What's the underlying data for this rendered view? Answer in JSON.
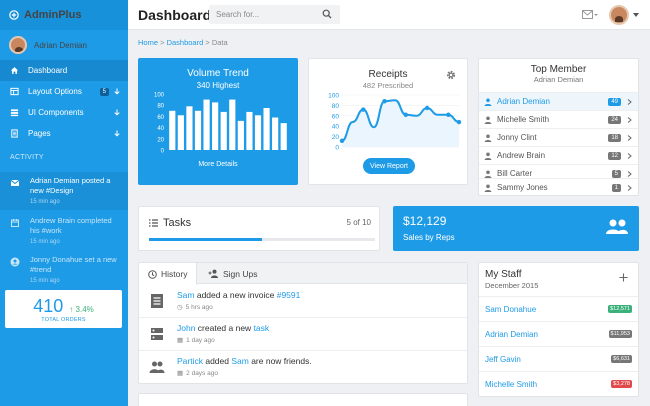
{
  "app": {
    "brand": "AdminPlus",
    "page_title": "Dashboard"
  },
  "colors": {
    "primary": "#1e9be6",
    "sidebar": "#1e9be6",
    "success": "#3bb07b",
    "danger": "#e04a4a",
    "muted": "#777777"
  },
  "search": {
    "placeholder": "Search for..."
  },
  "user": {
    "name": "Adrian Demian"
  },
  "sidebar": {
    "items": [
      {
        "label": "Dashboard",
        "icon": "home-icon"
      },
      {
        "label": "Layout Options",
        "icon": "layout-icon",
        "badge": "5"
      },
      {
        "label": "UI Components",
        "icon": "components-icon"
      },
      {
        "label": "Pages",
        "icon": "pages-icon"
      }
    ],
    "activity_heading": "ACTIVITY",
    "activity": [
      {
        "text": "Adrian Demian posted a new #Design",
        "time": "15 min ago"
      },
      {
        "text": "Andrew Brain completed his #work",
        "time": "15 min ago"
      },
      {
        "text": "Jonny Donahue set a new #trend",
        "time": "15 min ago"
      }
    ],
    "orders": {
      "value": "410",
      "change": "3.4%",
      "label": "TOTAL ORDERS"
    }
  },
  "breadcrumb": {
    "home": "Home",
    "dashboard": "Dashboard",
    "current": "Data"
  },
  "volume": {
    "title": "Volume Trend",
    "subtitle": "340 Highest",
    "footer": "More Details"
  },
  "receipts": {
    "title": "Receipts",
    "subtitle": "482 Prescribed",
    "button": "View Report"
  },
  "chart_data": [
    {
      "type": "bar",
      "ylim": [
        0,
        100
      ],
      "yticks": [
        "100",
        "80",
        "60",
        "40",
        "20",
        "0"
      ],
      "values": [
        70,
        62,
        78,
        70,
        90,
        85,
        68,
        90,
        52,
        68,
        62,
        75,
        58,
        48
      ]
    },
    {
      "type": "line",
      "ylim": [
        0,
        100
      ],
      "yticks": [
        "100",
        "80",
        "60",
        "40",
        "20",
        "0"
      ],
      "values": [
        12,
        48,
        72,
        38,
        88,
        90,
        62,
        60,
        75,
        62,
        62,
        48
      ]
    }
  ],
  "top_member": {
    "title": "Top Member",
    "subtitle": "Adrian Demian",
    "rows": [
      {
        "name": "Adrian Demian",
        "count": "49"
      },
      {
        "name": "Michelle Smith",
        "count": "24"
      },
      {
        "name": "Jonny Clint",
        "count": "18"
      },
      {
        "name": "Andrew Brain",
        "count": "12"
      },
      {
        "name": "Bill Carter",
        "count": "5"
      },
      {
        "name": "Sammy Jones",
        "count": "1"
      }
    ]
  },
  "tasks": {
    "title": "Tasks",
    "count": "5 of 10",
    "progress": 0.5
  },
  "sales": {
    "value": "$12,129",
    "label": "Sales by Reps"
  },
  "history": {
    "tabs": [
      "History",
      "Sign Ups"
    ],
    "rows": [
      {
        "pre": "",
        "who": "Sam",
        "mid": " added a new invoice ",
        "link": "#9591",
        "post": "",
        "time": "5 hrs ago"
      },
      {
        "pre": "",
        "who": "John",
        "mid": " created a new ",
        "link": "task",
        "post": "",
        "time": "1 day ago"
      },
      {
        "pre": "",
        "who": "Partick",
        "mid": " added ",
        "link": "Sam",
        "post": " are now friends.",
        "time": "2 days ago"
      }
    ]
  },
  "staff": {
    "title": "My Staff",
    "subtitle": "December 2015",
    "rows": [
      {
        "name": "Sam Donahue",
        "amount": "$12,571",
        "color": "#3bb07b"
      },
      {
        "name": "Adrian Demian",
        "amount": "$11,953",
        "color": "#777777"
      },
      {
        "name": "Jeff Gavin",
        "amount": "$6,631",
        "color": "#777777"
      },
      {
        "name": "Michelle Smith",
        "amount": "$3,278",
        "color": "#e04a4a"
      }
    ]
  }
}
